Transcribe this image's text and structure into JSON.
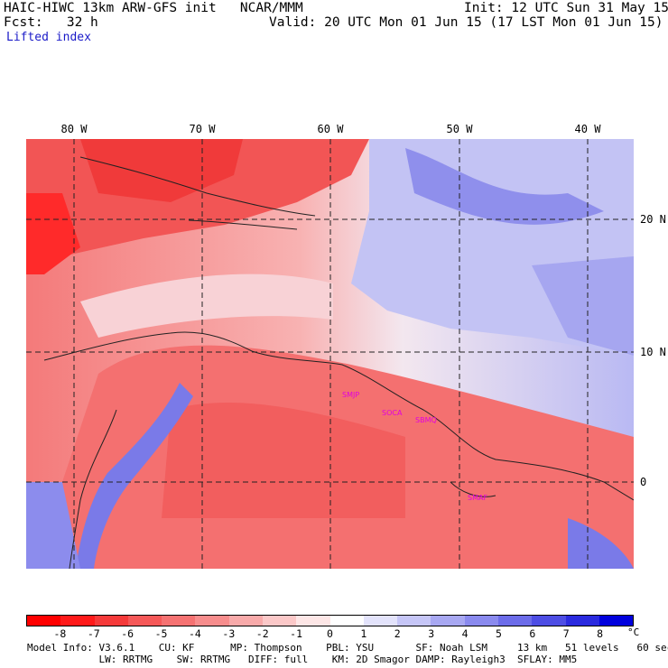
{
  "header": {
    "title_left": "HAIC-HIWC 13km ARW-GFS init   NCAR/MMM",
    "init": "Init: 12 UTC Sun 31 May 15",
    "fcst": "Fcst:   32 h",
    "valid": "Valid: 20 UTC Mon 01 Jun 15 (17 LST Mon 01 Jun 15)",
    "field": "Lifted index"
  },
  "map": {
    "lon_labels": [
      "80 W",
      "70 W",
      "60 W",
      "50 W",
      "40 W"
    ],
    "lat_labels": [
      "20 N",
      "10 N",
      "0"
    ],
    "stations": [
      "SMJP",
      "SOCA",
      "SBMQ",
      "SMAF"
    ]
  },
  "colorbar": {
    "ticks": [
      "-8",
      "-7",
      "-6",
      "-5",
      "-4",
      "-3",
      "-2",
      "-1",
      "0",
      "1",
      "2",
      "3",
      "4",
      "5",
      "6",
      "7",
      "8"
    ],
    "unit": "°C",
    "colors": [
      "#ff0000",
      "#ff1a1a",
      "#f53a3a",
      "#f55858",
      "#f57272",
      "#f78d8d",
      "#f8aaaa",
      "#fbc8c8",
      "#fde6e6",
      "#ffffff",
      "#e3e3fb",
      "#c6c6f7",
      "#a8a8f2",
      "#8a8aee",
      "#6c6ce9",
      "#4d4de4",
      "#2a2adf",
      "#0000dd"
    ]
  },
  "model_info": {
    "line1": "Model Info: V3.6.1    CU: KF      MP: Thompson    PBL: YSU       SF: Noah LSM     13 km   51 levels   60 sec",
    "line2": "            LW: RRTMG    SW: RRTMG   DIFF: full    KM: 2D Smagor DAMP: Rayleigh3  SFLAY: MM5"
  }
}
